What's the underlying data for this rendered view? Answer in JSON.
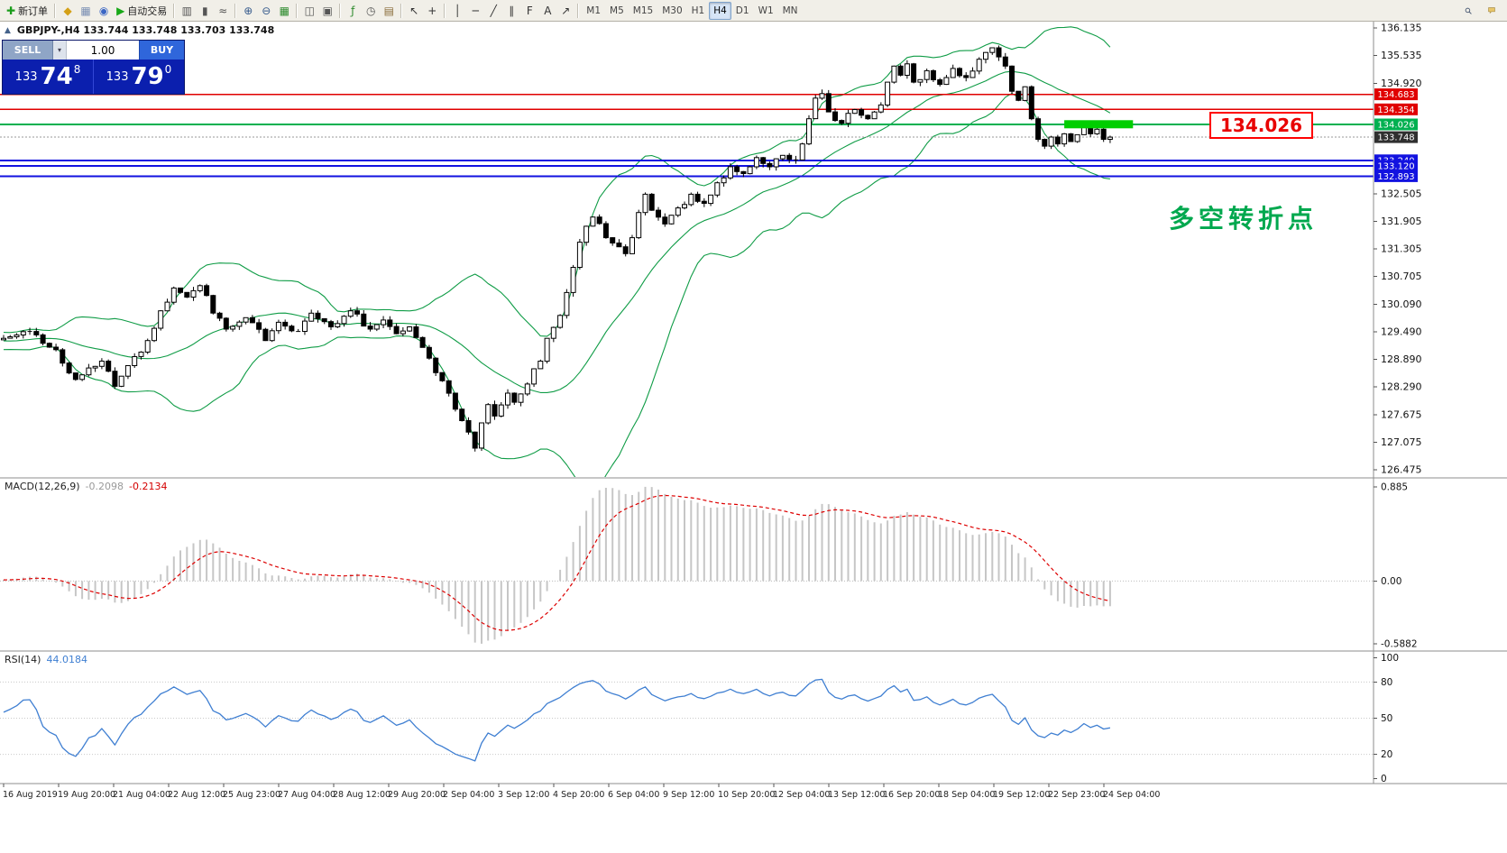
{
  "toolbar": {
    "items": [
      {
        "name": "new-order-button",
        "glyph": "✚",
        "glyph_color": "#1a9c1a",
        "label": "新订单"
      },
      {
        "sep": true
      },
      {
        "name": "market-watch-button",
        "glyph": "◆",
        "glyph_color": "#d4a017"
      },
      {
        "name": "data-window-button",
        "glyph": "▦",
        "glyph_color": "#7b8fb3"
      },
      {
        "name": "navigator-button",
        "glyph": "◉",
        "glyph_color": "#3b66c4"
      },
      {
        "name": "auto-trading-button",
        "glyph": "▶",
        "glyph_color": "#18a818",
        "label": "自动交易"
      },
      {
        "sep": true
      },
      {
        "name": "bar-chart-button",
        "glyph": "▥",
        "glyph_color": "#555555"
      },
      {
        "name": "candlestick-chart-button",
        "glyph": "▮",
        "glyph_color": "#555555"
      },
      {
        "name": "line-chart-button",
        "glyph": "≈",
        "glyph_color": "#555555"
      },
      {
        "sep": true
      },
      {
        "name": "zoom-in-button",
        "glyph": "⊕",
        "glyph_color": "#355a8c"
      },
      {
        "name": "zoom-out-button",
        "glyph": "⊖",
        "glyph_color": "#355a8c"
      },
      {
        "name": "tile-windows-button",
        "glyph": "▦",
        "glyph_color": "#2e8b2e"
      },
      {
        "sep": true
      },
      {
        "name": "cascade-windows-button",
        "glyph": "◫",
        "glyph_color": "#555555"
      },
      {
        "name": "arrange-windows-button",
        "glyph": "▣",
        "glyph_color": "#555555"
      },
      {
        "sep": true
      },
      {
        "name": "indicators-button",
        "glyph": "ƒ",
        "glyph_color": "#2e8b2e"
      },
      {
        "name": "periods-button",
        "glyph": "◷",
        "glyph_color": "#555555"
      },
      {
        "name": "templates-button",
        "glyph": "▤",
        "glyph_color": "#8a6d3b"
      },
      {
        "sep": true
      },
      {
        "name": "cursor-button",
        "glyph": "↖",
        "glyph_color": "#333333"
      },
      {
        "name": "crosshair-button",
        "glyph": "+",
        "glyph_color": "#333333"
      },
      {
        "sep": true
      },
      {
        "name": "vertical-line-button",
        "glyph": "│",
        "glyph_color": "#333333"
      },
      {
        "name": "horizontal-line-button",
        "glyph": "─",
        "glyph_color": "#333333"
      },
      {
        "name": "trendline-button",
        "glyph": "╱",
        "glyph_color": "#333333"
      },
      {
        "name": "equidistant-channel-button",
        "glyph": "∥",
        "glyph_color": "#333333"
      },
      {
        "name": "fibonacci-button",
        "glyph": "F",
        "glyph_color": "#333333"
      },
      {
        "name": "text-button",
        "glyph": "A",
        "glyph_color": "#333333"
      },
      {
        "name": "arrow-tools-button",
        "glyph": "↗",
        "glyph_color": "#333333"
      },
      {
        "sep": true
      }
    ],
    "timeframes": [
      "M1",
      "M5",
      "M15",
      "M30",
      "H1",
      "H4",
      "D1",
      "W1",
      "MN"
    ],
    "active_timeframe": "H4"
  },
  "chart": {
    "symbol_info": "GBPJPY-,H4 133.744 133.748 133.703 133.748",
    "panel_toggle_icon": "▲",
    "annotation_text": "多空转折点",
    "callout_text": "134.026"
  },
  "trade_panel": {
    "sell_label": "SELL",
    "buy_label": "BUY",
    "volume": "1.00",
    "volume_dropdown_icon": "▾",
    "sell_price_prefix": "133",
    "sell_price_big": "74",
    "sell_price_sup": "8",
    "buy_price_prefix": "133",
    "buy_price_big": "79",
    "buy_price_sup": "0"
  },
  "macd_label": {
    "name": "MACD(12,26,9)",
    "value_main": "-0.2098",
    "value_signal": "-0.2134"
  },
  "rsi_label": {
    "name": "RSI(14)",
    "value": "44.0184"
  },
  "chart_data": {
    "type": "candlestick",
    "symbol": "GBPJPY-",
    "timeframe": "H4",
    "ohlc_current": {
      "open": 133.744,
      "high": 133.748,
      "low": 133.703,
      "close": 133.748
    },
    "bid": 133.748,
    "visible_bars": 170,
    "price_axis": {
      "view_max": 136.233,
      "view_min": 126.357,
      "ticks": [
        136.135,
        135.535,
        134.92,
        132.505,
        131.905,
        131.305,
        130.705,
        130.09,
        129.49,
        128.89,
        128.29,
        127.675,
        127.075,
        126.475
      ]
    },
    "levels": [
      {
        "price": 134.683,
        "color": "#e00000",
        "width": 1.4
      },
      {
        "price": 134.354,
        "color": "#e00000",
        "width": 1.4
      },
      {
        "price": 134.026,
        "color": "#00b050",
        "width": 2
      },
      {
        "price": 133.24,
        "color": "#1212e0",
        "width": 2
      },
      {
        "price": 133.12,
        "color": "#1212e0",
        "width": 2
      },
      {
        "price": 132.893,
        "color": "#1212e0",
        "width": 2
      }
    ],
    "highlight": {
      "from_bar": 162,
      "to_bar": 172.5,
      "price": 134.03,
      "color": "#00ce00",
      "thickness": 9
    },
    "indicators": {
      "bollinger": {
        "period": 20,
        "deviation": 2,
        "color": "#0f9c46"
      },
      "macd": {
        "fast": 12,
        "slow": 26,
        "signal": 9,
        "hist_color": "#c6c6c6",
        "signal_color": "#dd0000",
        "view": [
          -0.64,
          0.96
        ],
        "ticks": [
          {
            "value": 0.885,
            "label": "0.885"
          },
          {
            "value": 0,
            "label": "0.00"
          },
          {
            "value": -0.5882,
            "label": "-0.5882"
          }
        ]
      },
      "rsi": {
        "period": 14,
        "color": "#3f7fd2",
        "view": [
          -2,
          105
        ],
        "levels": [
          80,
          50,
          20
        ],
        "ticks": [
          {
            "value": 100,
            "label": "100"
          },
          {
            "value": 80,
            "label": "80"
          },
          {
            "value": 50,
            "label": "50"
          },
          {
            "value": 20,
            "label": "20"
          },
          {
            "value": 0,
            "label": "0"
          }
        ]
      }
    },
    "price_anchors": [
      [
        -45,
        129.05
      ],
      [
        -38,
        129.5
      ],
      [
        -30,
        129.2
      ],
      [
        -22,
        129.55
      ],
      [
        -14,
        129.1
      ],
      [
        -8,
        129.45
      ],
      [
        -3,
        129.3
      ],
      [
        0,
        129.35
      ],
      [
        4,
        129.5
      ],
      [
        8,
        129.1
      ],
      [
        11,
        128.45
      ],
      [
        13,
        128.7
      ],
      [
        15,
        128.85
      ],
      [
        17,
        128.3
      ],
      [
        20,
        128.95
      ],
      [
        22,
        129.3
      ],
      [
        24,
        129.95
      ],
      [
        26,
        130.45
      ],
      [
        28,
        130.25
      ],
      [
        30,
        130.5
      ],
      [
        32,
        129.9
      ],
      [
        34,
        129.55
      ],
      [
        37,
        129.8
      ],
      [
        40,
        129.3
      ],
      [
        42,
        129.7
      ],
      [
        45,
        129.5
      ],
      [
        47,
        129.9
      ],
      [
        50,
        129.6
      ],
      [
        53,
        129.95
      ],
      [
        56,
        129.55
      ],
      [
        58,
        129.75
      ],
      [
        60,
        129.45
      ],
      [
        62,
        129.6
      ],
      [
        64,
        129.15
      ],
      [
        66,
        128.6
      ],
      [
        68,
        128.15
      ],
      [
        69,
        127.8
      ],
      [
        70,
        127.55
      ],
      [
        71,
        127.3
      ],
      [
        72,
        126.95
      ],
      [
        73,
        127.5
      ],
      [
        74,
        127.9
      ],
      [
        75,
        127.65
      ],
      [
        77,
        128.15
      ],
      [
        78,
        127.95
      ],
      [
        80,
        128.35
      ],
      [
        82,
        128.85
      ],
      [
        83,
        129.35
      ],
      [
        85,
        129.85
      ],
      [
        86,
        130.35
      ],
      [
        87,
        130.9
      ],
      [
        88,
        131.45
      ],
      [
        89,
        131.8
      ],
      [
        90,
        132.0
      ],
      [
        92,
        131.55
      ],
      [
        94,
        131.35
      ],
      [
        95,
        131.2
      ],
      [
        96,
        131.55
      ],
      [
        97,
        132.1
      ],
      [
        98,
        132.5
      ],
      [
        99,
        132.15
      ],
      [
        101,
        131.85
      ],
      [
        103,
        132.2
      ],
      [
        105,
        132.5
      ],
      [
        107,
        132.3
      ],
      [
        109,
        132.75
      ],
      [
        111,
        133.1
      ],
      [
        113,
        132.95
      ],
      [
        115,
        133.3
      ],
      [
        117,
        133.1
      ],
      [
        119,
        133.35
      ],
      [
        121,
        133.25
      ],
      [
        122,
        133.6
      ],
      [
        123,
        134.15
      ],
      [
        124,
        134.6
      ],
      [
        125,
        134.7
      ],
      [
        126,
        134.3
      ],
      [
        128,
        134.05
      ],
      [
        130,
        134.35
      ],
      [
        132,
        134.15
      ],
      [
        134,
        134.45
      ],
      [
        135,
        134.95
      ],
      [
        136,
        135.3
      ],
      [
        137,
        135.1
      ],
      [
        138,
        135.35
      ],
      [
        139,
        134.95
      ],
      [
        141,
        135.2
      ],
      [
        143,
        134.9
      ],
      [
        145,
        135.25
      ],
      [
        147,
        135.05
      ],
      [
        149,
        135.45
      ],
      [
        151,
        135.7
      ],
      [
        152,
        135.5
      ],
      [
        153,
        135.3
      ],
      [
        154,
        134.75
      ],
      [
        155,
        134.55
      ],
      [
        156,
        134.85
      ],
      [
        157,
        134.15
      ],
      [
        158,
        133.7
      ],
      [
        159,
        133.55
      ],
      [
        160,
        133.75
      ],
      [
        161,
        133.6
      ],
      [
        162,
        133.82
      ],
      [
        163,
        133.65
      ],
      [
        164,
        133.8
      ],
      [
        165,
        134.05
      ],
      [
        166,
        133.82
      ],
      [
        167,
        133.92
      ],
      [
        168,
        133.7
      ],
      [
        169,
        133.748
      ]
    ],
    "time_labels": [
      "16 Aug 2019",
      "19 Aug 20:00",
      "21 Aug 04:00",
      "22 Aug 12:00",
      "25 Aug 23:00",
      "27 Aug 04:00",
      "28 Aug 12:00",
      "29 Aug 20:00",
      "2 Sep 04:00",
      "3 Sep 12:00",
      "4 Sep 20:00",
      "6 Sep 04:00",
      "9 Sep 12:00",
      "10 Sep 20:00",
      "12 Sep 04:00",
      "13 Sep 12:00",
      "16 Sep 20:00",
      "18 Sep 04:00",
      "19 Sep 12:00",
      "22 Sep 23:00",
      "24 Sep 04:00"
    ]
  }
}
